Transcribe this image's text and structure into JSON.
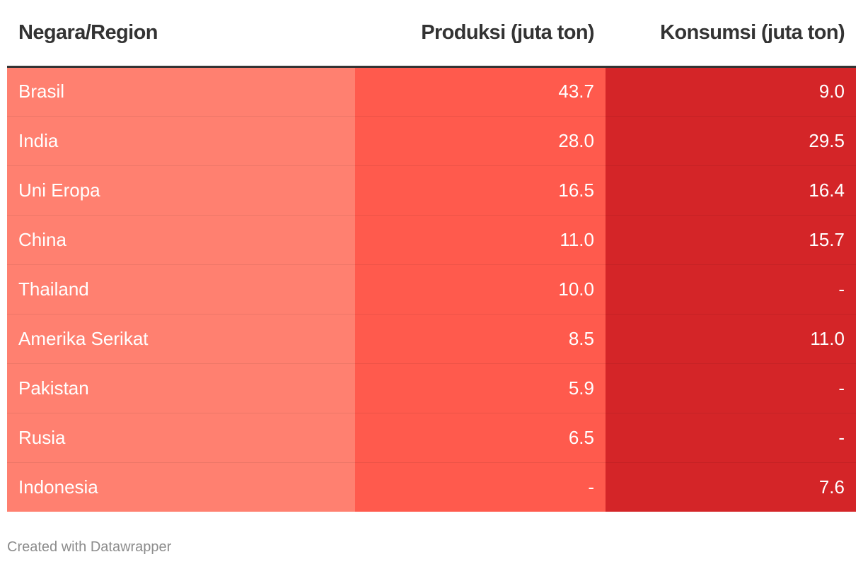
{
  "chart_data": {
    "type": "table",
    "columns": [
      "Negara/Region",
      "Produksi (juta ton)",
      "Konsumsi (juta ton)"
    ],
    "rows": [
      [
        "Brasil",
        "43.7",
        "9.0"
      ],
      [
        "India",
        "28.0",
        "29.5"
      ],
      [
        "Uni Eropa",
        "16.5",
        "16.4"
      ],
      [
        "China",
        "11.0",
        "15.7"
      ],
      [
        "Thailand",
        "10.0",
        "-"
      ],
      [
        "Amerika Serikat",
        "8.5",
        "11.0"
      ],
      [
        "Pakistan",
        "5.9",
        "-"
      ],
      [
        "Rusia",
        "6.5",
        "-"
      ],
      [
        "Indonesia",
        "-",
        "7.6"
      ]
    ],
    "column_colors": [
      "#ff8070",
      "#ff5a4d",
      "#d42528"
    ]
  },
  "footer": {
    "credit": "Created with Datawrapper"
  }
}
